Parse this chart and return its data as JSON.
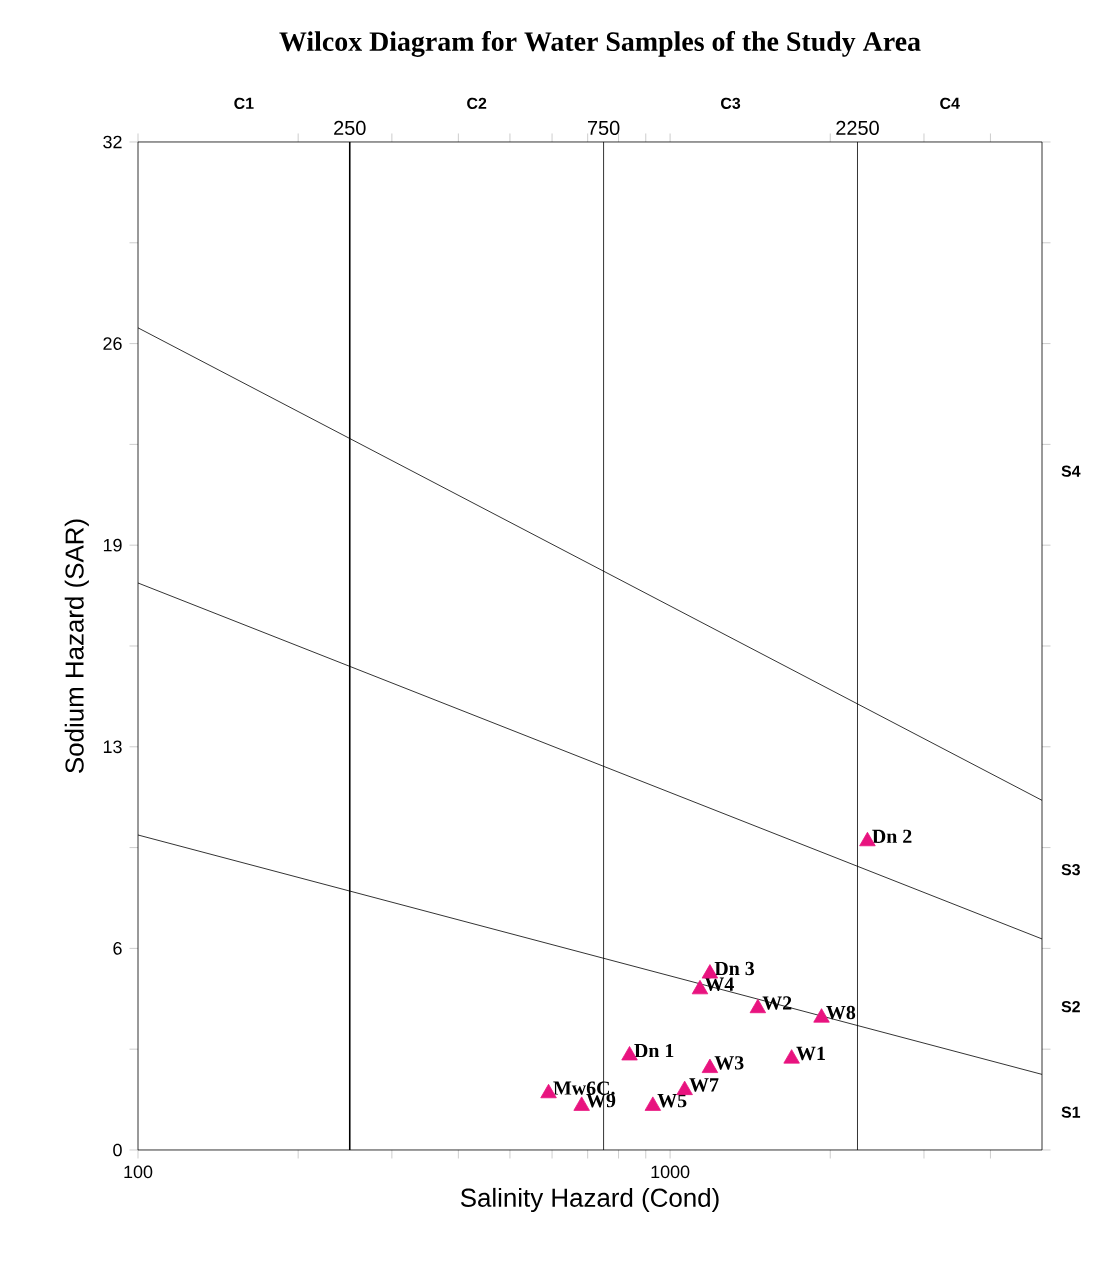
{
  "chart_data": {
    "type": "scatter",
    "title": "Wilcox Diagram for Water Samples of the Study Area",
    "xlabel": "Salinity Hazard (Cond)",
    "ylabel": "Sodium Hazard (SAR)",
    "log": "x",
    "xlim": [
      100,
      5000
    ],
    "ylim": [
      0,
      32
    ],
    "xticks": [
      100,
      {
        "value": 200,
        "label": null
      },
      {
        "value": 300,
        "label": null
      },
      {
        "value": 400,
        "label": null
      },
      {
        "value": 500,
        "label": null
      },
      {
        "value": 600,
        "label": null
      },
      {
        "value": 700,
        "label": null
      },
      {
        "value": 800,
        "label": null
      },
      {
        "value": 900,
        "label": null
      },
      1000,
      {
        "value": 2000,
        "label": null
      },
      {
        "value": 3000,
        "label": null
      },
      {
        "value": 4000,
        "label": null
      }
    ],
    "yticks": [
      0,
      {
        "value": 3.2,
        "label": null
      },
      {
        "value": 6.4,
        "label": "6"
      },
      {
        "value": 9.6,
        "label": null
      },
      {
        "value": 12.8,
        "label": "13"
      },
      {
        "value": 16,
        "label": null
      },
      {
        "value": 19.2,
        "label": "19"
      },
      {
        "value": 22.4,
        "label": null
      },
      {
        "value": 25.6,
        "label": "26"
      },
      {
        "value": 28.8,
        "label": null
      },
      32
    ],
    "marker": "triangle",
    "grid": false,
    "series": [
      {
        "color": "#e8137f",
        "x": [
          2349,
          1188,
          1138,
          1462,
          1926,
          1692,
          1188,
          1065,
          928,
          839,
          591,
          682
        ],
        "values": [
          9.8,
          5.6,
          5.1,
          4.5,
          4.2,
          2.9,
          2.6,
          1.9,
          1.4,
          3.0,
          1.8,
          1.4
        ]
      },
      {
        "type": "line",
        "marker": "none",
        "color": "#000000",
        "x": [
          100,
          5000
        ],
        "values": [
          10.0,
          2.4
        ]
      },
      {
        "type": "line",
        "marker": "none",
        "color": "#000000",
        "x": [
          100,
          5000
        ],
        "values": [
          18.0,
          6.7
        ]
      },
      {
        "type": "line",
        "marker": "none",
        "color": "#000000",
        "x": [
          100,
          5000
        ],
        "values": [
          26.1,
          11.1
        ]
      }
    ],
    "ref_lines": [
      {
        "axis": "x",
        "value": 250,
        "label": "250",
        "color": "#000000"
      },
      {
        "axis": "x",
        "value": 750,
        "label": "750",
        "color": "#000000"
      },
      {
        "axis": "x",
        "value": 2250,
        "label": "2250",
        "color": "#000000"
      }
    ],
    "annotations": [
      {
        "text": "Dn 2",
        "x": 2349,
        "y": 9.8
      },
      {
        "text": "Dn 3",
        "x": 1188,
        "y": 5.6
      },
      {
        "text": "W4",
        "x": 1138,
        "y": 5.1
      },
      {
        "text": "W2",
        "x": 1462,
        "y": 4.5
      },
      {
        "text": "W8",
        "x": 1926,
        "y": 4.2
      },
      {
        "text": "W1",
        "x": 1692,
        "y": 2.9
      },
      {
        "text": "W3",
        "x": 1188,
        "y": 2.6
      },
      {
        "text": "W7",
        "x": 1065,
        "y": 1.9
      },
      {
        "text": "W5",
        "x": 928,
        "y": 1.4
      },
      {
        "text": "Dn 1",
        "x": 839,
        "y": 3.0
      },
      {
        "text": "Mw6C.",
        "x": 591,
        "y": 1.8
      },
      {
        "text": "W9",
        "x": 682,
        "y": 1.4
      },
      "S1",
      "S2",
      "S3",
      "S4",
      "C1",
      "C2",
      "C3",
      "C4"
    ]
  }
}
